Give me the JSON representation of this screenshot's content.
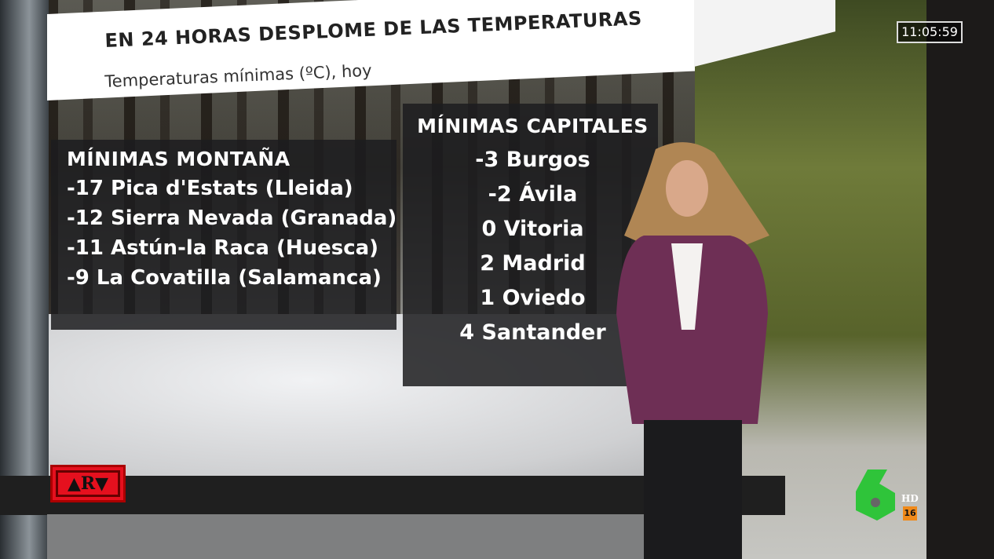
{
  "title": "EN 24 HORAS DESPLOME DE LAS TEMPERATURAS",
  "subtitle": "Temperaturas mínimas (ºC), hoy",
  "mountain": {
    "heading": "MÍNIMAS MONTAÑA",
    "rows": [
      "-17 Pica d'Estats (Lleida)",
      "-12 Sierra Nevada (Granada)",
      "-11 Astún-la Raca (Huesca)",
      "-9 La Covatilla (Salamanca)"
    ]
  },
  "capitals": {
    "heading": "MÍNIMAS CAPITALES",
    "rows": [
      "-3 Burgos",
      "-2 Ávila",
      "0 Vitoria",
      "2 Madrid",
      "1 Oviedo",
      "4 Santander"
    ]
  },
  "clock": "11:05:59",
  "program_logo": "ARV",
  "channel": {
    "logo": "laSexta 6",
    "hd": "HD",
    "age_rating": "16",
    "logo_color": "#2fc43a"
  },
  "colors": {
    "arv_red": "#e5101e",
    "age_orange": "#f08a1a",
    "jacket": "#6e2f55"
  }
}
